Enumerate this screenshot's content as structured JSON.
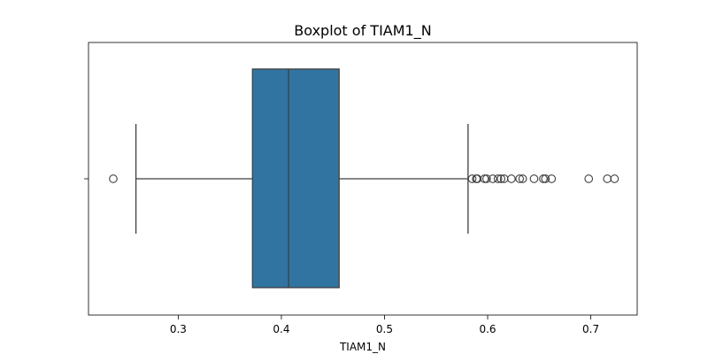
{
  "chart_data": {
    "type": "boxplot",
    "title": "Boxplot of TIAM1_N",
    "xlabel": "TIAM1_N",
    "ylabel": "",
    "orientation": "horizontal",
    "xlim": [
      0.213,
      0.745
    ],
    "xticks": [
      0.3,
      0.4,
      0.5,
      0.6,
      0.7
    ],
    "xtick_labels": [
      "0.3",
      "0.4",
      "0.5",
      "0.6",
      "0.7"
    ],
    "box": {
      "whisker_low": 0.259,
      "q1": 0.372,
      "median": 0.407,
      "q3": 0.456,
      "whisker_high": 0.581,
      "color": "#3274a1",
      "line_color": "#3f3f3f"
    },
    "outliers": [
      0.237,
      0.585,
      0.589,
      0.59,
      0.597,
      0.599,
      0.605,
      0.61,
      0.613,
      0.616,
      0.623,
      0.631,
      0.634,
      0.645,
      0.654,
      0.656,
      0.662,
      0.698,
      0.716,
      0.723
    ]
  }
}
